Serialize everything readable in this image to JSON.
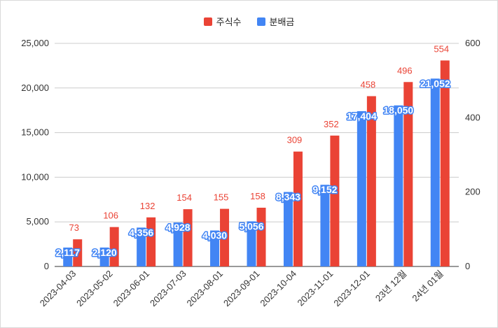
{
  "chart_data": {
    "type": "bar",
    "categories": [
      "2023-04-03",
      "2023-05-02",
      "2023-06-01",
      "2023-07-03",
      "2023-08-01",
      "2023-09-01",
      "2023-10-04",
      "2023-11-01",
      "2023-12-01",
      "23년 12월",
      "24년 01월"
    ],
    "series": [
      {
        "name": "분배금",
        "axis": "left",
        "color": "#4285f4",
        "values": [
          2117,
          2120,
          4356,
          4928,
          4030,
          5056,
          8343,
          9152,
          17404,
          18050,
          21052
        ],
        "labels": [
          "2,117",
          "2,120",
          "4,356",
          "4,928",
          "4,030",
          "5,056",
          "8,343",
          "9,152",
          "17,404",
          "18,050",
          "21,052"
        ]
      },
      {
        "name": "주식수",
        "axis": "right",
        "color": "#ea4335",
        "values": [
          73,
          106,
          132,
          154,
          155,
          158,
          309,
          352,
          458,
          496,
          554
        ],
        "labels": [
          "73",
          "106",
          "132",
          "154",
          "155",
          "158",
          "309",
          "352",
          "458",
          "496",
          "554"
        ]
      }
    ],
    "legend_order": [
      "주식수",
      "분배금"
    ],
    "legend_position": "top",
    "y_left": {
      "min": 0,
      "max": 25000,
      "ticks": [
        0,
        5000,
        10000,
        15000,
        20000,
        25000
      ],
      "tick_labels": [
        "0",
        "5,000",
        "10,000",
        "15,000",
        "20,000",
        "25,000"
      ]
    },
    "y_right": {
      "min": 0,
      "max": 600,
      "ticks": [
        0,
        200,
        400,
        600
      ],
      "tick_labels": [
        "0",
        "200",
        "400",
        "600"
      ]
    },
    "grid": true,
    "title": "",
    "xlabel": "",
    "ylabel": ""
  }
}
